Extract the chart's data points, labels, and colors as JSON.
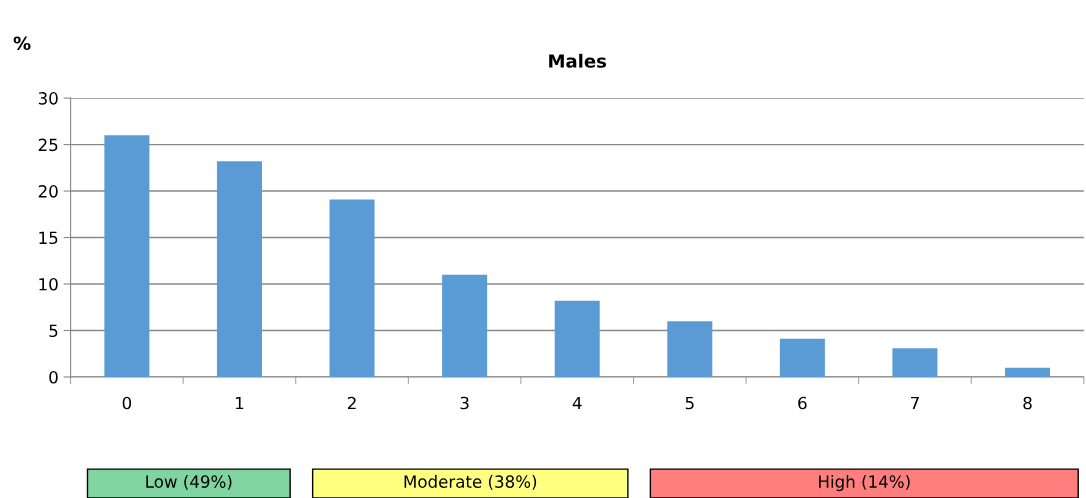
{
  "chart_data": {
    "type": "bar",
    "title": "Males",
    "ylabel": "%",
    "categories": [
      "0",
      "1",
      "2",
      "3",
      "4",
      "5",
      "6",
      "7",
      "8"
    ],
    "values": [
      26,
      23.2,
      19.1,
      11,
      8.2,
      6,
      4.1,
      3.1,
      1
    ],
    "color": "#5b9bd5",
    "ylim": [
      0,
      30
    ],
    "yticks": [
      0,
      5,
      10,
      15,
      20,
      25,
      30
    ],
    "grid": "y",
    "annotations": [
      "Low (49%)",
      "Moderate (38%)",
      "High (14%)"
    ]
  }
}
